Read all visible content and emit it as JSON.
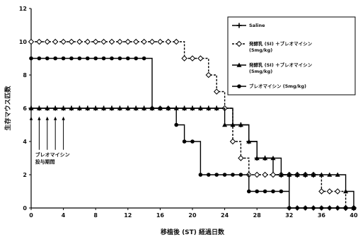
{
  "chart_data": {
    "type": "line",
    "xlabel": "移植後 (ST) 経過日数",
    "ylabel": "生存マウス匹数",
    "xlim": [
      0,
      40
    ],
    "ylim": [
      0,
      12
    ],
    "xticks": [
      0,
      4,
      8,
      12,
      16,
      20,
      24,
      28,
      32,
      36,
      40
    ],
    "yticks": [
      0,
      2,
      4,
      6,
      8,
      10,
      12
    ],
    "grid": false,
    "legend_position": "top-right",
    "annotation": {
      "lines": [
        "ブレオマイシン",
        "投与期間"
      ],
      "arrow_days": [
        0,
        1,
        2,
        3,
        4
      ]
    },
    "series": [
      {
        "name": "Saline",
        "line_style": "solid",
        "marker": "plus",
        "points": [
          [
            0,
            6
          ],
          [
            1,
            6
          ],
          [
            2,
            6
          ],
          [
            3,
            6
          ],
          [
            4,
            6
          ],
          [
            5,
            6
          ],
          [
            6,
            6
          ],
          [
            7,
            6
          ],
          [
            8,
            6
          ],
          [
            9,
            6
          ],
          [
            10,
            6
          ],
          [
            11,
            6
          ],
          [
            12,
            6
          ],
          [
            13,
            6
          ],
          [
            14,
            6
          ],
          [
            15,
            6
          ],
          [
            16,
            6
          ],
          [
            17,
            6
          ],
          [
            18,
            6
          ],
          [
            19,
            6
          ],
          [
            20,
            6
          ],
          [
            21,
            6
          ],
          [
            22,
            6
          ],
          [
            23,
            6
          ],
          [
            24,
            6
          ],
          [
            25,
            5
          ],
          [
            26,
            5
          ],
          [
            27,
            4
          ],
          [
            28,
            3
          ],
          [
            29,
            3
          ],
          [
            30,
            2
          ],
          [
            31,
            2
          ],
          [
            32,
            0
          ],
          [
            33,
            0
          ],
          [
            34,
            0
          ],
          [
            35,
            0
          ],
          [
            36,
            0
          ],
          [
            37,
            0
          ],
          [
            38,
            0
          ],
          [
            39,
            0
          ],
          [
            40,
            0
          ]
        ]
      },
      {
        "name": "発酵乳 (SI) ＋ブレオマイシン (5mg/kg)",
        "line_style": "dashed",
        "marker": "diamond",
        "points": [
          [
            0,
            10
          ],
          [
            1,
            10
          ],
          [
            2,
            10
          ],
          [
            3,
            10
          ],
          [
            4,
            10
          ],
          [
            5,
            10
          ],
          [
            6,
            10
          ],
          [
            7,
            10
          ],
          [
            8,
            10
          ],
          [
            9,
            10
          ],
          [
            10,
            10
          ],
          [
            11,
            10
          ],
          [
            12,
            10
          ],
          [
            13,
            10
          ],
          [
            14,
            10
          ],
          [
            15,
            10
          ],
          [
            16,
            10
          ],
          [
            17,
            10
          ],
          [
            18,
            10
          ],
          [
            19,
            9
          ],
          [
            20,
            9
          ],
          [
            21,
            9
          ],
          [
            22,
            8
          ],
          [
            23,
            7
          ],
          [
            24,
            6
          ],
          [
            25,
            4
          ],
          [
            26,
            3
          ],
          [
            27,
            2
          ],
          [
            28,
            2
          ],
          [
            29,
            2
          ],
          [
            30,
            2
          ],
          [
            31,
            2
          ],
          [
            32,
            2
          ],
          [
            33,
            2
          ],
          [
            34,
            2
          ],
          [
            35,
            2
          ],
          [
            36,
            1
          ],
          [
            37,
            1
          ],
          [
            38,
            1
          ],
          [
            39,
            0
          ],
          [
            40,
            0
          ]
        ]
      },
      {
        "name": "発酵乳 (SI) ＋ブレオマイシン (5mg/kg)",
        "line_style": "solid",
        "marker": "triangle",
        "points": [
          [
            0,
            6
          ],
          [
            1,
            6
          ],
          [
            2,
            6
          ],
          [
            3,
            6
          ],
          [
            4,
            6
          ],
          [
            5,
            6
          ],
          [
            6,
            6
          ],
          [
            7,
            6
          ],
          [
            8,
            6
          ],
          [
            9,
            6
          ],
          [
            10,
            6
          ],
          [
            11,
            6
          ],
          [
            12,
            6
          ],
          [
            13,
            6
          ],
          [
            14,
            6
          ],
          [
            15,
            6
          ],
          [
            16,
            6
          ],
          [
            17,
            6
          ],
          [
            18,
            6
          ],
          [
            19,
            6
          ],
          [
            20,
            6
          ],
          [
            21,
            6
          ],
          [
            22,
            6
          ],
          [
            23,
            6
          ],
          [
            24,
            5
          ],
          [
            25,
            5
          ],
          [
            26,
            5
          ],
          [
            27,
            4
          ],
          [
            28,
            3
          ],
          [
            29,
            3
          ],
          [
            30,
            3
          ],
          [
            31,
            2
          ],
          [
            32,
            2
          ],
          [
            33,
            2
          ],
          [
            34,
            2
          ],
          [
            35,
            2
          ],
          [
            36,
            2
          ],
          [
            37,
            2
          ],
          [
            38,
            2
          ],
          [
            39,
            1
          ],
          [
            40,
            0
          ]
        ]
      },
      {
        "name": "ブレオマイシン (5mg/kg)",
        "line_style": "solid",
        "marker": "circle",
        "points": [
          [
            0,
            9
          ],
          [
            1,
            9
          ],
          [
            2,
            9
          ],
          [
            3,
            9
          ],
          [
            4,
            9
          ],
          [
            5,
            9
          ],
          [
            6,
            9
          ],
          [
            7,
            9
          ],
          [
            8,
            9
          ],
          [
            9,
            9
          ],
          [
            10,
            9
          ],
          [
            11,
            9
          ],
          [
            12,
            9
          ],
          [
            13,
            9
          ],
          [
            14,
            9
          ],
          [
            15,
            6
          ],
          [
            16,
            6
          ],
          [
            17,
            6
          ],
          [
            18,
            5
          ],
          [
            19,
            4
          ],
          [
            20,
            4
          ],
          [
            21,
            2
          ],
          [
            22,
            2
          ],
          [
            23,
            2
          ],
          [
            24,
            2
          ],
          [
            25,
            2
          ],
          [
            26,
            2
          ],
          [
            27,
            1
          ],
          [
            28,
            1
          ],
          [
            29,
            1
          ],
          [
            30,
            1
          ],
          [
            31,
            1
          ],
          [
            32,
            0
          ],
          [
            33,
            0
          ],
          [
            34,
            0
          ],
          [
            35,
            0
          ],
          [
            36,
            0
          ],
          [
            37,
            0
          ],
          [
            38,
            0
          ],
          [
            39,
            0
          ],
          [
            40,
            0
          ]
        ]
      }
    ]
  }
}
